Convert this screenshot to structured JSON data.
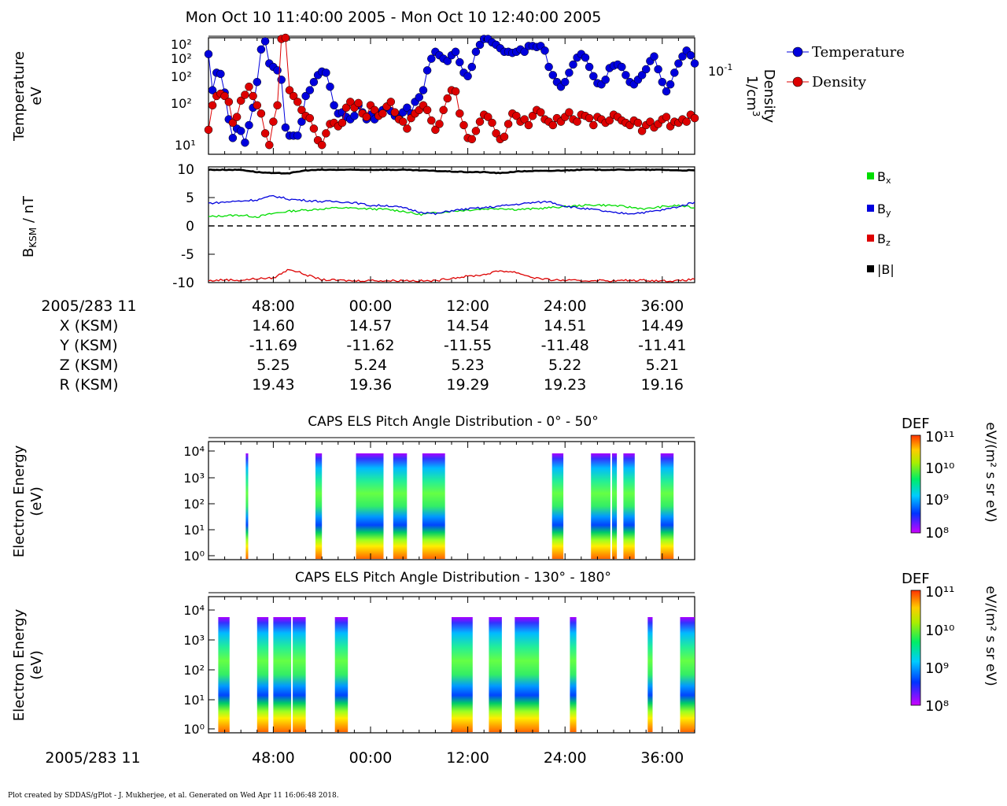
{
  "header": {
    "title": "Mon Oct 10 11:40:00 2005 - Mon Oct 10 12:40:00 2005"
  },
  "footer": {
    "text": "Plot created by SDDAS/gPlot - J. Mukherjee, et al.  Generated on Wed Apr 11 16:06:48 2018."
  },
  "colors": {
    "temperature": "#0000dd",
    "density": "#dd0000",
    "bx": "#00dd00",
    "by": "#0000dd",
    "bz": "#dd0000",
    "btot": "#000000"
  },
  "ephemeris": {
    "label_row": "2005/283 11",
    "rows": [
      {
        "label": "X (KSM)",
        "values": [
          "14.60",
          "14.57",
          "14.54",
          "14.51",
          "14.49"
        ]
      },
      {
        "label": "Y (KSM)",
        "values": [
          "-11.69",
          "-11.62",
          "-11.55",
          "-11.48",
          "-11.41"
        ]
      },
      {
        "label": "Z (KSM)",
        "values": [
          "5.25",
          "5.24",
          "5.23",
          "5.22",
          "5.21"
        ]
      },
      {
        "label": "R (KSM)",
        "values": [
          "19.43",
          "19.36",
          "19.29",
          "19.23",
          "19.16"
        ]
      }
    ],
    "tick_times": [
      "48:00",
      "00:00",
      "12:00",
      "24:00",
      "36:00"
    ]
  },
  "bottom_axis": {
    "label": "2005/283 11",
    "ticks": [
      "48:00",
      "00:00",
      "12:00",
      "24:00",
      "36:00"
    ]
  },
  "chart_data": [
    {
      "type": "line",
      "panel": "plasma-moments",
      "ylabel": "Temperature\neV",
      "y2label": "Density\n1/cm3",
      "y_ticks": [
        "10²",
        "10²",
        "10²",
        "10²",
        "10¹"
      ],
      "y2_ticks": [
        "10-1"
      ],
      "x_range_min": [
        -20,
        40
      ],
      "series": [
        {
          "name": "Temperature",
          "x": [
            -20,
            -19.5,
            -19,
            -18.5,
            -18,
            -17.5,
            -17,
            -16.5,
            -16,
            -15.5,
            -15,
            -14.5,
            -14,
            -13.5,
            -13,
            -12.5,
            -12,
            -11.5,
            -11,
            -10.5,
            -10,
            -9.5,
            -9,
            -8.5,
            -8,
            -7.5,
            -7,
            -6.5,
            -6,
            -5.5,
            -5,
            -4.5,
            -4,
            -3.5,
            -3,
            -2.5,
            -2,
            -1.5,
            -1,
            -0.5,
            0,
            0.5,
            1,
            1.5,
            2,
            2.5,
            3,
            3.5,
            4,
            4.5,
            5,
            5.5,
            6,
            6.5,
            7,
            7.5,
            8,
            8.5,
            9,
            9.5,
            10,
            10.5,
            11,
            11.5,
            12,
            12.5,
            13,
            13.5,
            14,
            14.5,
            15,
            15.5,
            16,
            16.5,
            17,
            17.5,
            18,
            18.5,
            19,
            19.5,
            20,
            20.5,
            21,
            21.5,
            22,
            22.5,
            23,
            23.5,
            24,
            24.5,
            25,
            25.5,
            26,
            26.5,
            27,
            27.5,
            28,
            28.5,
            29,
            29.5,
            30,
            30.5,
            31,
            31.5,
            32,
            32.5,
            33,
            33.5,
            34,
            34.5,
            35,
            35.5,
            36,
            36.5,
            37,
            37.5,
            38,
            38.5,
            39,
            39.5,
            40
          ],
          "y": [
            0.86,
            0.55,
            0.7,
            0.69,
            0.53,
            0.3,
            0.14,
            0.22,
            0.2,
            0.1,
            0.25,
            0.4,
            0.62,
            0.9,
            0.97,
            0.78,
            0.75,
            0.72,
            0.64,
            0.23,
            0.16,
            0.16,
            0.16,
            0.28,
            0.5,
            0.55,
            0.62,
            0.68,
            0.71,
            0.7,
            0.58,
            0.42,
            0.35,
            0.36,
            0.32,
            0.3,
            0.33,
            0.42,
            0.36,
            0.3,
            0.34,
            0.3,
            0.34,
            0.38,
            0.4,
            0.37,
            0.33,
            0.32,
            0.36,
            0.4,
            0.35,
            0.45,
            0.49,
            0.55,
            0.72,
            0.82,
            0.88,
            0.85,
            0.82,
            0.8,
            0.85,
            0.88,
            0.79,
            0.7,
            0.67,
            0.75,
            0.88,
            0.94,
            0.99,
            0.99,
            0.96,
            0.94,
            0.91,
            0.88,
            0.88,
            0.87,
            0.88,
            0.9,
            0.88,
            0.93,
            0.93,
            0.92,
            0.93,
            0.89,
            0.75,
            0.68,
            0.62,
            0.58,
            0.62,
            0.7,
            0.77,
            0.83,
            0.86,
            0.83,
            0.75,
            0.67,
            0.61,
            0.6,
            0.64,
            0.74,
            0.76,
            0.77,
            0.75,
            0.68,
            0.62,
            0.6,
            0.64,
            0.68,
            0.73,
            0.8,
            0.84,
            0.73,
            0.62,
            0.54,
            0.6,
            0.7,
            0.78,
            0.84,
            0.89,
            0.85,
            0.78
          ]
        },
        {
          "name": "Density",
          "x": [
            -20,
            -19.5,
            -19,
            -18.5,
            -18,
            -17.5,
            -17,
            -16.5,
            -16,
            -15.5,
            -15,
            -14.5,
            -14,
            -13.5,
            -13,
            -12.5,
            -12,
            -11.5,
            -11,
            -10.5,
            -10,
            -9.5,
            -9,
            -8.5,
            -8,
            -7.5,
            -7,
            -6.5,
            -6,
            -5.5,
            -5,
            -4.5,
            -4,
            -3.5,
            -3,
            -2.5,
            -2,
            -1.5,
            -1,
            -0.5,
            0,
            0.5,
            1,
            1.5,
            2,
            2.5,
            3,
            3.5,
            4,
            4.5,
            5,
            5.5,
            6,
            6.5,
            7,
            7.5,
            8,
            8.5,
            9,
            9.5,
            10,
            10.5,
            11,
            11.5,
            12,
            12.5,
            13,
            13.5,
            14,
            14.5,
            15,
            15.5,
            16,
            16.5,
            17,
            17.5,
            18,
            18.5,
            19,
            19.5,
            20,
            20.5,
            21,
            21.5,
            22,
            22.5,
            23,
            23.5,
            24,
            24.5,
            25,
            25.5,
            26,
            26.5,
            27,
            27.5,
            28,
            28.5,
            29,
            29.5,
            30,
            30.5,
            31,
            31.5,
            32,
            32.5,
            33,
            33.5,
            34,
            34.5,
            35,
            35.5,
            36,
            36.5,
            37,
            37.5,
            38,
            38.5,
            39,
            39.5,
            40
          ],
          "y": [
            0.21,
            0.42,
            0.5,
            0.52,
            0.5,
            0.45,
            0.27,
            0.32,
            0.46,
            0.51,
            0.58,
            0.5,
            0.42,
            0.35,
            0.18,
            0.08,
            0.28,
            0.42,
            0.99,
            1.0,
            0.55,
            0.5,
            0.45,
            0.38,
            0.33,
            0.31,
            0.22,
            0.12,
            0.08,
            0.18,
            0.26,
            0.27,
            0.24,
            0.27,
            0.4,
            0.45,
            0.4,
            0.44,
            0.35,
            0.32,
            0.42,
            0.38,
            0.33,
            0.35,
            0.41,
            0.45,
            0.36,
            0.3,
            0.28,
            0.22,
            0.31,
            0.35,
            0.38,
            0.42,
            0.38,
            0.29,
            0.21,
            0.26,
            0.38,
            0.48,
            0.55,
            0.54,
            0.35,
            0.25,
            0.14,
            0.13,
            0.2,
            0.28,
            0.34,
            0.32,
            0.27,
            0.18,
            0.13,
            0.15,
            0.26,
            0.35,
            0.33,
            0.28,
            0.3,
            0.25,
            0.33,
            0.38,
            0.36,
            0.3,
            0.28,
            0.25,
            0.31,
            0.28,
            0.32,
            0.36,
            0.3,
            0.28,
            0.34,
            0.33,
            0.31,
            0.25,
            0.32,
            0.3,
            0.27,
            0.29,
            0.34,
            0.32,
            0.29,
            0.27,
            0.25,
            0.29,
            0.27,
            0.2,
            0.25,
            0.28,
            0.23,
            0.26,
            0.3,
            0.32,
            0.24,
            0.28,
            0.27,
            0.3,
            0.28,
            0.34,
            0.31
          ]
        }
      ]
    },
    {
      "type": "line",
      "panel": "magnetic-field",
      "ylabel": "BKSM / nT",
      "ylim": [
        -10,
        10
      ],
      "y_ticks": [
        -10,
        -5,
        0,
        5,
        10
      ],
      "x_range_min": [
        -20,
        40
      ],
      "series": [
        {
          "name": "Bx",
          "x": [
            -20,
            -18,
            -16,
            -14,
            -12,
            -10,
            -8,
            -6,
            -4,
            -2,
            0,
            2,
            4,
            6,
            8,
            10,
            12,
            14,
            16,
            18,
            20,
            22,
            24,
            26,
            28,
            30,
            32,
            34,
            36,
            38,
            40
          ],
          "y": [
            1.6,
            1.8,
            1.9,
            1.6,
            2.2,
            2.6,
            2.8,
            3.0,
            3.2,
            3.1,
            3.0,
            2.9,
            2.6,
            2.0,
            2.3,
            2.6,
            2.8,
            3.0,
            3.1,
            2.9,
            3.0,
            3.2,
            3.4,
            3.6,
            3.7,
            3.6,
            3.3,
            3.0,
            3.4,
            3.6,
            3.2
          ]
        },
        {
          "name": "By",
          "x": [
            -20,
            -18,
            -16,
            -14,
            -12,
            -10,
            -8,
            -6,
            -4,
            -2,
            0,
            2,
            4,
            6,
            8,
            10,
            12,
            14,
            16,
            18,
            20,
            22,
            24,
            26,
            28,
            30,
            32,
            34,
            36,
            38,
            40
          ],
          "y": [
            4.0,
            4.2,
            4.4,
            4.6,
            5.3,
            4.7,
            4.5,
            4.3,
            4.3,
            4.1,
            3.6,
            3.6,
            3.2,
            2.5,
            2.1,
            2.7,
            3.0,
            3.2,
            3.5,
            3.8,
            4.1,
            4.3,
            3.5,
            3.1,
            2.8,
            2.3,
            2.2,
            2.4,
            2.8,
            3.4,
            4.2
          ]
        },
        {
          "name": "Bz",
          "x": [
            -20,
            -18,
            -16,
            -14,
            -12,
            -10,
            -8,
            -6,
            -4,
            -2,
            0,
            2,
            4,
            6,
            8,
            10,
            12,
            14,
            16,
            18,
            20,
            22,
            24,
            26,
            28,
            30,
            32,
            34,
            36,
            38,
            40
          ],
          "y": [
            -9.7,
            -9.5,
            -9.6,
            -9.3,
            -9.2,
            -7.6,
            -8.6,
            -9.5,
            -9.6,
            -9.7,
            -9.6,
            -9.7,
            -9.6,
            -9.7,
            -9.7,
            -9.2,
            -8.9,
            -8.6,
            -7.9,
            -8.2,
            -9.1,
            -9.5,
            -9.6,
            -9.7,
            -9.6,
            -9.7,
            -9.6,
            -9.6,
            -9.7,
            -9.7,
            -9.4
          ]
        },
        {
          "name": "|B|",
          "x": [
            -20,
            -18,
            -16,
            -14,
            -12,
            -10,
            -8,
            -6,
            -4,
            -2,
            0,
            2,
            4,
            6,
            8,
            10,
            12,
            14,
            16,
            18,
            20,
            22,
            24,
            26,
            28,
            30,
            32,
            34,
            36,
            38,
            40
          ],
          "y": [
            9.9,
            9.9,
            9.9,
            9.5,
            9.3,
            9.3,
            9.8,
            9.9,
            9.9,
            9.9,
            9.9,
            9.9,
            9.9,
            9.8,
            9.7,
            9.6,
            9.5,
            9.5,
            9.3,
            9.6,
            9.7,
            9.7,
            9.8,
            9.9,
            9.9,
            9.9,
            9.9,
            9.9,
            9.9,
            9.8,
            9.8
          ]
        }
      ],
      "legend": [
        "Bx",
        "By",
        "Bz",
        "|B|"
      ]
    },
    {
      "type": "heatmap",
      "panel": "els-0-50",
      "title": "CAPS ELS Pitch Angle Distribution - 0° - 50°",
      "ylabel": "Electron Energy\n(eV)",
      "y_ticks": [
        "10⁰",
        "10¹",
        "10²",
        "10³",
        "10⁴"
      ],
      "colorbar": {
        "label": "DEF",
        "units": "eV/(m² s sr eV)",
        "ticks": [
          "10¹¹",
          "10¹⁰",
          "10⁹",
          "10⁸"
        ]
      },
      "x_range_min": [
        -20,
        40
      ],
      "data_intervals_min": [
        [
          -15.4,
          -15.1
        ],
        [
          -6.8,
          -6.0
        ],
        [
          -1.8,
          1.6
        ],
        [
          2.8,
          4.5
        ],
        [
          6.4,
          9.2
        ],
        [
          22.4,
          23.8
        ],
        [
          27.2,
          29.6
        ],
        [
          29.8,
          30.4
        ],
        [
          31.2,
          32.6
        ],
        [
          35.8,
          37.4
        ]
      ]
    },
    {
      "type": "heatmap",
      "panel": "els-130-180",
      "title": "CAPS ELS Pitch Angle Distribution - 130° - 180°",
      "ylabel": "Electron Energy\n(eV)",
      "y_ticks": [
        "10⁰",
        "10¹",
        "10²",
        "10³",
        "10⁴"
      ],
      "colorbar": {
        "label": "DEF",
        "units": "eV/(m² s sr eV)",
        "ticks": [
          "10¹¹",
          "10¹⁰",
          "10⁹",
          "10⁸"
        ]
      },
      "x_range_min": [
        -20,
        40
      ],
      "data_intervals_min": [
        [
          -18.8,
          -17.4
        ],
        [
          -14.0,
          -12.6
        ],
        [
          -12.0,
          -9.8
        ],
        [
          -9.6,
          -8.0
        ],
        [
          -4.4,
          -2.8
        ],
        [
          10.0,
          12.6
        ],
        [
          14.6,
          16.2
        ],
        [
          17.8,
          20.8
        ],
        [
          24.6,
          25.4
        ],
        [
          34.2,
          34.8
        ],
        [
          38.2,
          40.0
        ]
      ]
    }
  ]
}
